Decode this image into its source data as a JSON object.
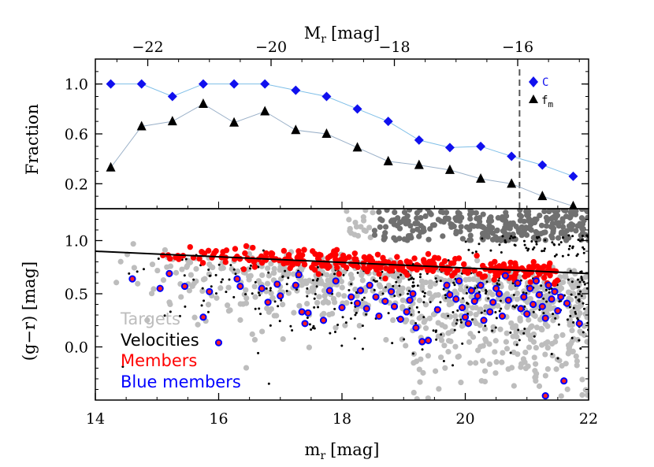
{
  "chart_data": [
    {
      "type": "line",
      "ylabel": "Fraction",
      "top_xlabel": "M",
      "top_xlabel_sub": "r",
      "top_xlabel_unit": "[mag]",
      "xlim": [
        14,
        22
      ],
      "ylim": [
        0.0,
        1.2
      ],
      "yticks": [
        "0.2",
        "0.6",
        "1.0"
      ],
      "top_axis": {
        "ticks": [
          "−22",
          "−20",
          "−18",
          "−16"
        ],
        "values": [
          -22,
          -20,
          -18,
          -16
        ],
        "offset": 36.85
      },
      "completeness_limit_mr": 20.88,
      "x": [
        14.25,
        14.75,
        15.25,
        15.75,
        16.25,
        16.75,
        17.25,
        17.75,
        18.25,
        18.75,
        19.25,
        19.75,
        20.25,
        20.75,
        21.25,
        21.75
      ],
      "series": [
        {
          "name": "C",
          "marker": "diamond",
          "color": "#1010ee",
          "line_color": "#7fbfe8",
          "values": [
            1.0,
            1.0,
            0.9,
            1.0,
            1.0,
            1.0,
            0.95,
            0.9,
            0.8,
            0.7,
            0.55,
            0.49,
            0.5,
            0.42,
            0.35,
            0.26
          ]
        },
        {
          "name": "f",
          "name_sub": "m",
          "marker": "triangle",
          "color": "#000000",
          "line_color": "#9ab0c8",
          "values": [
            0.33,
            0.66,
            0.7,
            0.84,
            0.69,
            0.78,
            0.63,
            0.6,
            0.49,
            0.38,
            0.35,
            0.31,
            0.24,
            0.2,
            0.1,
            0.02
          ]
        }
      ]
    },
    {
      "type": "scatter",
      "xlabel": "m",
      "xlabel_sub": "r",
      "xlabel_unit": "[mag]",
      "ylabel": "(g−r) [mag]",
      "xlim": [
        14,
        22
      ],
      "ylim": [
        -0.5,
        1.3
      ],
      "xticks": [
        "14",
        "16",
        "18",
        "20",
        "22"
      ],
      "yticks": [
        "0.0",
        "0.5",
        "1.0"
      ],
      "red_sequence_fit": {
        "x": [
          14.0,
          22.0
        ],
        "y": [
          0.9,
          0.69
        ]
      },
      "legend": [
        {
          "label": "Targets",
          "color": "#bdbdbd"
        },
        {
          "label": "Velocities",
          "color": "#000000"
        },
        {
          "label": "Members",
          "color": "#ff0000"
        },
        {
          "label": "Blue members",
          "color": "#0000ff"
        }
      ],
      "series": [
        {
          "name": "Targets",
          "color": "#bdbdbd",
          "approx_count": 1100
        },
        {
          "name": "Velocities",
          "color": "#000000",
          "approx_count": 450
        },
        {
          "name": "Members",
          "color": "#ff0000",
          "approx_count": 320
        },
        {
          "name": "Blue members",
          "color": "#0000ff",
          "points": [
            [
              14.6,
              0.64
            ],
            [
              15.05,
              0.55
            ],
            [
              15.2,
              0.69
            ],
            [
              15.45,
              0.57
            ],
            [
              15.75,
              0.28
            ],
            [
              15.85,
              0.52
            ],
            [
              16.0,
              0.04
            ],
            [
              16.3,
              0.64
            ],
            [
              16.35,
              0.57
            ],
            [
              16.7,
              0.55
            ],
            [
              16.8,
              0.42
            ],
            [
              16.95,
              0.59
            ],
            [
              17.0,
              0.48
            ],
            [
              17.25,
              0.58
            ],
            [
              17.3,
              0.68
            ],
            [
              17.35,
              0.33
            ],
            [
              17.4,
              0.22
            ],
            [
              17.45,
              0.32
            ],
            [
              17.7,
              0.25
            ],
            [
              17.8,
              0.53
            ],
            [
              17.9,
              0.62
            ],
            [
              18.0,
              0.37
            ],
            [
              18.15,
              0.47
            ],
            [
              18.25,
              0.41
            ],
            [
              18.3,
              0.53
            ],
            [
              18.4,
              0.36
            ],
            [
              18.45,
              0.58
            ],
            [
              18.55,
              0.47
            ],
            [
              18.6,
              0.29
            ],
            [
              18.7,
              0.43
            ],
            [
              18.8,
              0.52
            ],
            [
              18.85,
              0.38
            ],
            [
              18.95,
              0.26
            ],
            [
              19.05,
              0.33
            ],
            [
              19.1,
              0.44
            ],
            [
              19.15,
              0.5
            ],
            [
              19.2,
              0.18
            ],
            [
              19.3,
              0.05
            ],
            [
              19.4,
              0.06
            ],
            [
              19.55,
              0.35
            ],
            [
              19.7,
              0.58
            ],
            [
              19.75,
              0.49
            ],
            [
              19.85,
              0.45
            ],
            [
              19.9,
              0.62
            ],
            [
              19.95,
              0.37
            ],
            [
              20.0,
              0.28
            ],
            [
              20.05,
              0.22
            ],
            [
              20.1,
              0.53
            ],
            [
              20.15,
              0.43
            ],
            [
              20.2,
              0.48
            ],
            [
              20.25,
              0.58
            ],
            [
              20.3,
              0.25
            ],
            [
              20.4,
              0.33
            ],
            [
              20.45,
              0.42
            ],
            [
              20.5,
              0.55
            ],
            [
              20.55,
              0.5
            ],
            [
              20.6,
              0.29
            ],
            [
              20.65,
              0.67
            ],
            [
              20.7,
              0.44
            ],
            [
              20.85,
              0.6
            ],
            [
              20.9,
              0.36
            ],
            [
              20.95,
              0.47
            ],
            [
              21.0,
              0.31
            ],
            [
              21.05,
              0.55
            ],
            [
              21.1,
              0.4
            ],
            [
              21.15,
              0.62
            ],
            [
              21.2,
              0.49
            ],
            [
              21.25,
              0.38
            ],
            [
              21.3,
              0.27
            ],
            [
              21.35,
              0.58
            ],
            [
              21.4,
              0.45
            ],
            [
              21.45,
              0.52
            ],
            [
              21.5,
              0.34
            ],
            [
              21.55,
              0.47
            ],
            [
              21.65,
              0.41
            ],
            [
              21.85,
              0.22
            ],
            [
              21.3,
              -0.46
            ],
            [
              21.6,
              -0.32
            ]
          ]
        }
      ]
    }
  ]
}
